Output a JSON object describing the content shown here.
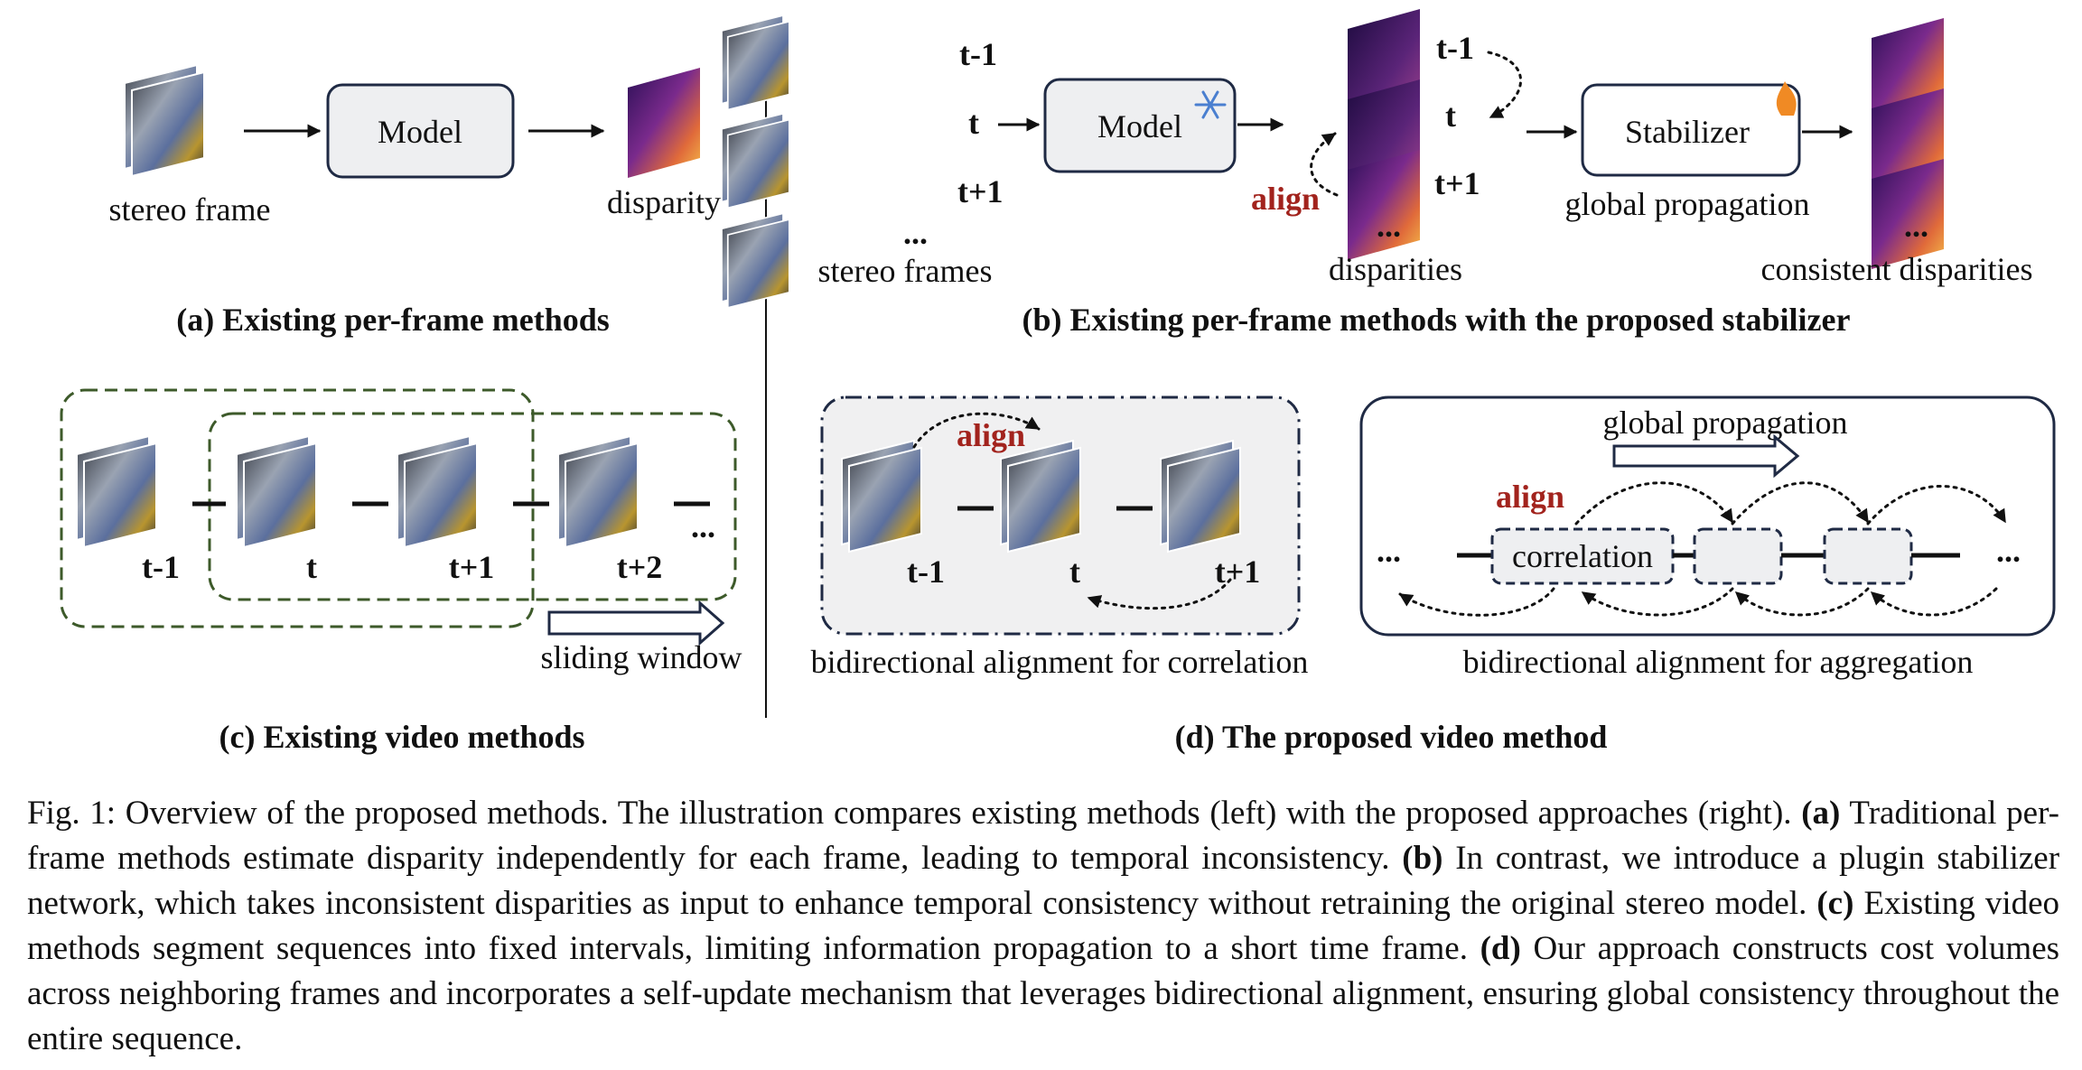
{
  "panel_a": {
    "title": "(a) Existing per-frame methods",
    "model": "Model",
    "input_label": "stereo frame",
    "output_label": "disparity"
  },
  "panel_b": {
    "title": "(b) Existing per-frame methods with the proposed stabilizer",
    "frame_labels": [
      "t-1",
      "t",
      "t+1"
    ],
    "ellipsis": "...",
    "model": "Model",
    "stabilizer": "Stabilizer",
    "input_label": "stereo frames",
    "disparities_label": "disparities",
    "align_label": "align",
    "propagation_label": "global propagation",
    "output_label": "consistent disparities"
  },
  "panel_c": {
    "title": "(c) Existing video methods",
    "frame_labels": [
      "t-1",
      "t",
      "t+1",
      "t+2"
    ],
    "ellipsis": "...",
    "window_label": "sliding window"
  },
  "panel_d": {
    "title": "(d) The proposed video method",
    "frame_labels": [
      "t-1",
      "t",
      "t+1"
    ],
    "align_label": "align",
    "correlation_caption": "bidirectional alignment for correlation",
    "propagation_label": "global propagation",
    "correlation_box": "correlation",
    "ellipsis": "...",
    "aggregation_caption": "bidirectional alignment for aggregation"
  },
  "caption": {
    "fig": "Fig. 1: Overview of the proposed methods. The illustration compares existing methods (left) with the proposed approaches (right).",
    "a_mark": "(a)",
    "a_text": "Traditional per-frame methods estimate disparity independently for each frame, leading to temporal inconsistency.",
    "b_mark": "(b)",
    "b_text": "In contrast, we introduce a plugin stabilizer network, which takes inconsistent disparities as input to enhance temporal consistency without retraining the original stereo model.",
    "c_mark": "(c)",
    "c_text": "Existing video methods segment sequences into fixed intervals, limiting information propagation to a short time frame.",
    "d_mark": "(d)",
    "d_text": "Our approach constructs cost volumes across neighboring frames and incorporates a self-update mechanism that leverages bidirectional alignment, ensuring global consistency throughout the entire sequence."
  }
}
